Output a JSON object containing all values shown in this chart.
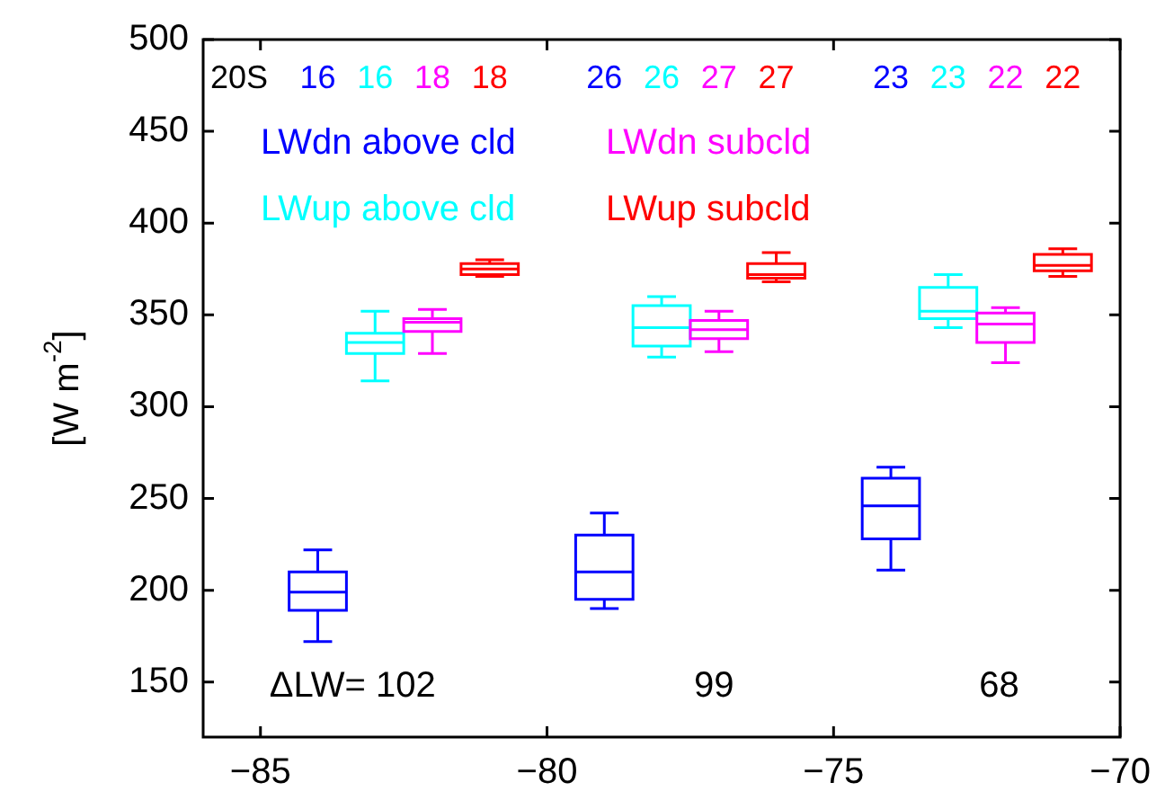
{
  "chart_data": {
    "type": "box",
    "ylabel": "[W m$^{-2}$]",
    "xlim": [
      -86,
      -70
    ],
    "xticks": [
      -85,
      -80,
      -75,
      -70
    ],
    "ylim": [
      120,
      500
    ],
    "yticks": [
      150,
      200,
      250,
      300,
      350,
      400,
      450,
      500
    ],
    "grid": false,
    "legend": "top left",
    "annotations": [
      "20S",
      "ΔLW= 102",
      "99",
      "68"
    ],
    "series": [
      {
        "name": "LWdn above cld",
        "color": "#0000ff",
        "x": [
          -84,
          -79,
          -74
        ],
        "value_labels": [
          "16",
          "26",
          "23"
        ],
        "boxes": [
          {
            "low": 172,
            "q1": 189,
            "median": 199,
            "q3": 210,
            "high": 222
          },
          {
            "low": 190,
            "q1": 195,
            "median": 210,
            "q3": 230,
            "high": 242
          },
          {
            "low": 211,
            "q1": 228,
            "median": 246,
            "q3": 261,
            "high": 267
          }
        ]
      },
      {
        "name": "LWup above cld",
        "color": "#00ffff",
        "x": [
          -83,
          -78,
          -73
        ],
        "value_labels": [
          "16",
          "26",
          "23"
        ],
        "boxes": [
          {
            "low": 314,
            "q1": 329,
            "median": 335,
            "q3": 340,
            "high": 352
          },
          {
            "low": 327,
            "q1": 333,
            "median": 343,
            "q3": 355,
            "high": 360
          },
          {
            "low": 343,
            "q1": 348,
            "median": 352,
            "q3": 365,
            "high": 372
          }
        ]
      },
      {
        "name": "LWdn subcld",
        "color": "#ff00ff",
        "x": [
          -82,
          -77,
          -72
        ],
        "value_labels": [
          "18",
          "27",
          "22"
        ],
        "boxes": [
          {
            "low": 329,
            "q1": 341,
            "median": 346,
            "q3": 348,
            "high": 353
          },
          {
            "low": 330,
            "q1": 337,
            "median": 342,
            "q3": 347,
            "high": 352
          },
          {
            "low": 324,
            "q1": 335,
            "median": 345,
            "q3": 351,
            "high": 354
          }
        ]
      },
      {
        "name": "LWup subcld",
        "color": "#ff0000",
        "x": [
          -81,
          -76,
          -71
        ],
        "value_labels": [
          "18",
          "27",
          "22"
        ],
        "boxes": [
          {
            "low": 371,
            "q1": 372,
            "median": 375,
            "q3": 378,
            "high": 380
          },
          {
            "low": 368,
            "q1": 370,
            "median": 372,
            "q3": 378,
            "high": 384
          },
          {
            "low": 371,
            "q1": 374,
            "median": 377,
            "q3": 383,
            "high": 386
          }
        ]
      }
    ]
  }
}
